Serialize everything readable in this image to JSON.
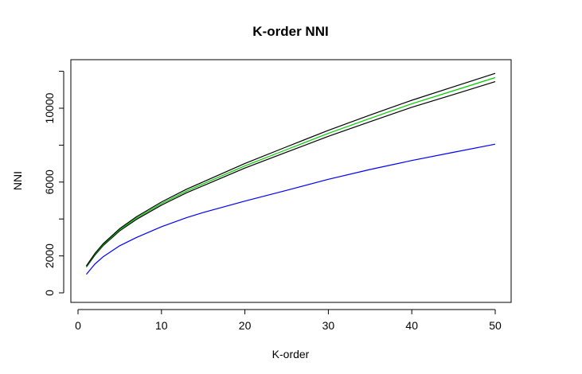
{
  "chart_data": {
    "type": "line",
    "title": "K-order NNI",
    "xlabel": "K-order",
    "ylabel": "NNI",
    "xlim": [
      1,
      50
    ],
    "ylim": [
      0,
      12000
    ],
    "xticks": [
      0,
      10,
      20,
      30,
      40,
      50
    ],
    "xtick_labels": [
      "0",
      "10",
      "20",
      "30",
      "40",
      "50"
    ],
    "yticks": [
      0,
      2000,
      4000,
      6000,
      8000,
      10000,
      12000
    ],
    "ytick_labels": [
      "0",
      "2000",
      "",
      "6000",
      "",
      "10000",
      ""
    ],
    "grid": false,
    "legend": "none",
    "series": [
      {
        "color": "#0000ff",
        "x": [
          1,
          2,
          3,
          5,
          7,
          10,
          13,
          15,
          20,
          25,
          30,
          35,
          40,
          45,
          50
        ],
        "y": [
          1000,
          1550,
          1950,
          2550,
          3000,
          3580,
          4070,
          4350,
          4970,
          5550,
          6150,
          6680,
          7170,
          7610,
          8050
        ]
      },
      {
        "color": "#000000",
        "x": [
          1,
          2,
          3,
          5,
          7,
          10,
          13,
          15,
          20,
          25,
          30,
          35,
          40,
          45,
          50
        ],
        "y": [
          1400,
          2030,
          2550,
          3360,
          3980,
          4750,
          5420,
          5800,
          6760,
          7620,
          8480,
          9270,
          10050,
          10740,
          11440
        ]
      },
      {
        "color": "#00cc00",
        "x": [
          1,
          2,
          3,
          5,
          7,
          10,
          13,
          15,
          20,
          25,
          30,
          35,
          40,
          45,
          50
        ],
        "y": [
          1430,
          2080,
          2600,
          3420,
          4050,
          4830,
          5510,
          5900,
          6880,
          7760,
          8640,
          9450,
          10240,
          10950,
          11660
        ]
      },
      {
        "color": "#000000",
        "x": [
          1,
          2,
          3,
          5,
          7,
          10,
          13,
          15,
          20,
          25,
          30,
          35,
          40,
          45,
          50
        ],
        "y": [
          1460,
          2120,
          2650,
          3480,
          4120,
          4920,
          5610,
          6010,
          7010,
          7910,
          8800,
          9630,
          10430,
          11160,
          11890
        ]
      }
    ]
  }
}
